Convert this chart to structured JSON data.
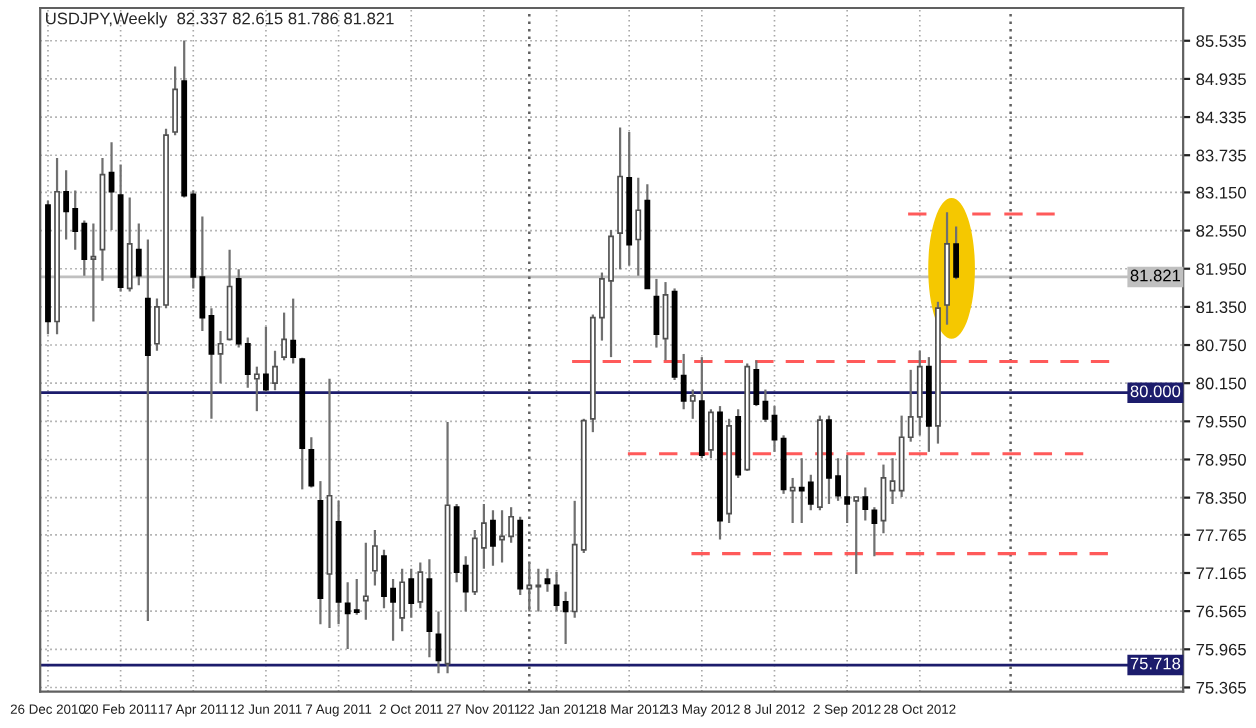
{
  "chart_data": {
    "type": "candlestick",
    "title": "USDJPY,Weekly  82.337 82.615 81.786 81.821",
    "x": [
      "2010-12-26",
      "2011-01-02",
      "2011-01-09",
      "2011-01-16",
      "2011-01-23",
      "2011-01-30",
      "2011-02-06",
      "2011-02-13",
      "2011-02-20",
      "2011-02-27",
      "2011-03-06",
      "2011-03-13",
      "2011-03-20",
      "2011-03-27",
      "2011-04-03",
      "2011-04-10",
      "2011-04-17",
      "2011-04-24",
      "2011-05-01",
      "2011-05-08",
      "2011-05-15",
      "2011-05-22",
      "2011-05-29",
      "2011-06-05",
      "2011-06-12",
      "2011-06-19",
      "2011-06-26",
      "2011-07-03",
      "2011-07-10",
      "2011-07-17",
      "2011-07-24",
      "2011-07-31",
      "2011-08-07",
      "2011-08-14",
      "2011-08-21",
      "2011-08-28",
      "2011-09-04",
      "2011-09-11",
      "2011-09-18",
      "2011-09-25",
      "2011-10-02",
      "2011-10-09",
      "2011-10-16",
      "2011-10-23",
      "2011-10-30",
      "2011-11-06",
      "2011-11-13",
      "2011-11-20",
      "2011-11-27",
      "2011-12-04",
      "2011-12-11",
      "2011-12-18",
      "2011-12-25",
      "2012-01-01",
      "2012-01-08",
      "2012-01-15",
      "2012-01-22",
      "2012-01-29",
      "2012-02-05",
      "2012-02-12",
      "2012-02-19",
      "2012-02-26",
      "2012-03-04",
      "2012-03-11",
      "2012-03-18",
      "2012-03-25",
      "2012-04-01",
      "2012-04-08",
      "2012-04-15",
      "2012-04-22",
      "2012-04-29",
      "2012-05-06",
      "2012-05-13",
      "2012-05-20",
      "2012-05-27",
      "2012-06-03",
      "2012-06-10",
      "2012-06-17",
      "2012-06-24",
      "2012-07-01",
      "2012-07-08",
      "2012-07-15",
      "2012-07-22",
      "2012-07-29",
      "2012-08-05",
      "2012-08-12",
      "2012-08-19",
      "2012-08-26",
      "2012-09-02",
      "2012-09-09",
      "2012-09-16",
      "2012-09-23",
      "2012-09-30",
      "2012-10-07",
      "2012-10-14",
      "2012-10-21",
      "2012-10-28",
      "2012-11-04",
      "2012-11-11",
      "2012-11-18",
      "2012-11-25"
    ],
    "ohlc": [
      [
        82.95,
        83.02,
        80.92,
        81.12
      ],
      [
        81.12,
        83.69,
        80.92,
        83.16
      ],
      [
        83.16,
        83.5,
        82.41,
        82.85
      ],
      [
        82.89,
        83.18,
        82.25,
        82.54
      ],
      [
        82.66,
        82.71,
        81.84,
        82.1
      ],
      [
        82.1,
        82.66,
        81.12,
        82.14
      ],
      [
        82.25,
        83.69,
        81.76,
        83.43
      ],
      [
        83.46,
        83.94,
        82.56,
        83.16
      ],
      [
        83.11,
        83.59,
        81.59,
        81.66
      ],
      [
        81.64,
        83.07,
        81.59,
        82.34
      ],
      [
        82.25,
        82.66,
        81.69,
        81.84
      ],
      [
        81.48,
        82.41,
        76.41,
        80.59
      ],
      [
        80.77,
        81.48,
        80.66,
        81.35
      ],
      [
        81.38,
        84.15,
        81.33,
        84.05
      ],
      [
        84.1,
        85.13,
        84.05,
        84.77
      ],
      [
        84.9,
        85.54,
        83.07,
        83.1
      ],
      [
        83.12,
        83.18,
        81.64,
        81.82
      ],
      [
        81.82,
        82.77,
        80.97,
        81.18
      ],
      [
        81.21,
        81.33,
        79.59,
        80.61
      ],
      [
        80.61,
        80.97,
        80.15,
        80.77
      ],
      [
        80.84,
        82.25,
        80.82,
        81.67
      ],
      [
        81.79,
        81.94,
        80.71,
        80.77
      ],
      [
        80.77,
        80.87,
        80.08,
        80.29
      ],
      [
        80.22,
        80.41,
        79.71,
        80.29
      ],
      [
        80.29,
        81.04,
        80.02,
        80.05
      ],
      [
        80.15,
        80.66,
        80.04,
        80.41
      ],
      [
        80.56,
        81.26,
        80.51,
        80.84
      ],
      [
        80.82,
        81.48,
        80.46,
        80.56
      ],
      [
        80.53,
        80.55,
        78.48,
        79.13
      ],
      [
        79.1,
        79.3,
        78.51,
        78.54
      ],
      [
        78.3,
        78.61,
        76.36,
        76.77
      ],
      [
        77.15,
        80.22,
        76.3,
        78.38
      ],
      [
        77.97,
        78.3,
        76.36,
        76.71
      ],
      [
        76.69,
        77.02,
        75.97,
        76.53
      ],
      [
        76.58,
        77.07,
        76.51,
        76.55
      ],
      [
        76.73,
        77.64,
        76.43,
        76.8
      ],
      [
        77.2,
        77.84,
        76.97,
        77.59
      ],
      [
        77.43,
        77.53,
        76.61,
        76.8
      ],
      [
        76.92,
        77.07,
        76.1,
        76.71
      ],
      [
        76.46,
        77.23,
        76.25,
        77.02
      ],
      [
        77.07,
        77.23,
        76.46,
        76.69
      ],
      [
        76.71,
        77.33,
        76.61,
        77.18
      ],
      [
        77.07,
        77.38,
        75.84,
        76.25
      ],
      [
        76.2,
        76.56,
        75.59,
        75.79
      ],
      [
        75.74,
        79.54,
        75.59,
        78.23
      ],
      [
        78.2,
        78.25,
        77.02,
        77.18
      ],
      [
        77.28,
        77.43,
        76.56,
        76.87
      ],
      [
        76.87,
        77.84,
        76.82,
        77.71
      ],
      [
        77.56,
        78.25,
        77.23,
        77.95
      ],
      [
        77.99,
        78.15,
        77.28,
        77.59
      ],
      [
        77.69,
        78.15,
        77.33,
        77.74
      ],
      [
        77.74,
        78.2,
        77.64,
        78.05
      ],
      [
        77.99,
        78.05,
        76.82,
        76.92
      ],
      [
        76.92,
        77.33,
        76.56,
        76.97
      ],
      [
        76.95,
        77.23,
        76.56,
        76.97
      ],
      [
        77.07,
        77.23,
        76.87,
        77.0
      ],
      [
        76.97,
        77.18,
        76.56,
        76.66
      ],
      [
        76.71,
        76.87,
        76.05,
        76.56
      ],
      [
        76.56,
        78.3,
        76.46,
        77.61
      ],
      [
        77.53,
        79.59,
        77.48,
        79.56
      ],
      [
        79.59,
        81.23,
        79.38,
        81.18
      ],
      [
        81.18,
        81.89,
        80.82,
        81.79
      ],
      [
        81.76,
        82.56,
        80.56,
        82.46
      ],
      [
        82.51,
        84.17,
        81.94,
        83.4
      ],
      [
        83.38,
        84.1,
        82.0,
        82.33
      ],
      [
        82.41,
        83.38,
        81.84,
        82.87
      ],
      [
        83.02,
        83.28,
        81.64,
        81.64
      ],
      [
        81.51,
        81.79,
        80.71,
        80.92
      ],
      [
        80.85,
        81.74,
        80.51,
        81.54
      ],
      [
        81.59,
        81.64,
        80.2,
        80.25
      ],
      [
        80.27,
        80.61,
        79.74,
        79.87
      ],
      [
        79.87,
        80.05,
        79.59,
        79.95
      ],
      [
        79.87,
        80.56,
        78.97,
        79.02
      ],
      [
        79.1,
        79.74,
        78.97,
        79.69
      ],
      [
        79.69,
        79.79,
        77.69,
        77.99
      ],
      [
        78.1,
        79.59,
        77.95,
        79.48
      ],
      [
        79.62,
        79.74,
        78.66,
        78.71
      ],
      [
        78.79,
        80.46,
        78.77,
        80.41
      ],
      [
        80.36,
        80.51,
        79.79,
        79.82
      ],
      [
        79.86,
        80.05,
        79.54,
        79.59
      ],
      [
        79.64,
        79.79,
        79.07,
        79.26
      ],
      [
        79.28,
        79.33,
        78.41,
        78.48
      ],
      [
        78.46,
        78.66,
        77.95,
        78.51
      ],
      [
        78.51,
        78.97,
        77.95,
        78.46
      ],
      [
        78.59,
        78.71,
        78.15,
        78.25
      ],
      [
        78.2,
        79.64,
        78.15,
        79.57
      ],
      [
        79.57,
        79.64,
        78.25,
        78.66
      ],
      [
        78.69,
        78.97,
        78.3,
        78.38
      ],
      [
        78.36,
        79.02,
        77.95,
        78.25
      ],
      [
        78.3,
        78.36,
        77.15,
        78.36
      ],
      [
        78.36,
        78.51,
        77.99,
        78.17
      ],
      [
        78.15,
        78.2,
        77.43,
        77.95
      ],
      [
        77.99,
        78.87,
        77.79,
        78.66
      ],
      [
        78.46,
        78.97,
        78.25,
        78.61
      ],
      [
        78.46,
        79.64,
        78.36,
        79.3
      ],
      [
        79.3,
        80.36,
        79.23,
        79.62
      ],
      [
        79.62,
        80.66,
        79.33,
        80.41
      ],
      [
        80.41,
        80.56,
        79.07,
        79.48
      ],
      [
        79.48,
        81.43,
        79.2,
        81.33
      ],
      [
        81.38,
        82.84,
        81.07,
        82.34
      ],
      [
        82.337,
        82.615,
        81.786,
        81.821
      ]
    ],
    "series": [
      {
        "type": "line",
        "color": "#ff5a5a",
        "line_style": "dashed",
        "x": [
          "2012-02-03",
          "2013-03-23"
        ],
        "values": [
          80.49,
          80.49
        ]
      },
      {
        "type": "line",
        "color": "#ff5a5a",
        "line_style": "dashed",
        "x": [
          "2012-03-17",
          "2013-03-03"
        ],
        "values": [
          79.04,
          79.04
        ]
      },
      {
        "type": "line",
        "color": "#ff5a5a",
        "line_style": "dashed",
        "x": [
          "2012-05-05",
          "2013-03-22"
        ],
        "values": [
          77.47,
          77.47
        ]
      },
      {
        "type": "line",
        "color": "#ff5a5a",
        "line_style": "dashed",
        "x": [
          "2012-10-19",
          "2013-02-09"
        ],
        "values": [
          82.81,
          82.81
        ]
      }
    ],
    "ref_lines": [
      {
        "axis": "y",
        "value": 81.821,
        "label": "81.821",
        "color": "#c0c0c0",
        "line_style": "solid"
      },
      {
        "axis": "y",
        "value": 80.0,
        "label": "80.000",
        "color": "#1c1c6c",
        "line_style": "solid"
      },
      {
        "axis": "y",
        "value": 75.718,
        "label": "75.718",
        "color": "#1c1c6c",
        "line_style": "solid"
      },
      {
        "axis": "x",
        "value": "2012-01-01",
        "color": "#606060",
        "line_style": "dotted"
      },
      {
        "axis": "x",
        "value": "2013-01-06",
        "color": "#606060",
        "line_style": "dotted"
      }
    ],
    "xlim": [
      "2010-12-20",
      "2013-05-19"
    ],
    "xticks": [
      {
        "value": "2010-12-26",
        "label": "26 Dec 2010"
      },
      {
        "value": "2011-02-20",
        "label": "20 Feb 2011"
      },
      {
        "value": "2011-04-17",
        "label": "17 Apr 2011"
      },
      {
        "value": "2011-06-12",
        "label": "12 Jun 2011"
      },
      {
        "value": "2011-08-07",
        "label": "7 Aug 2011"
      },
      {
        "value": "2011-10-02",
        "label": "2 Oct 2011"
      },
      {
        "value": "2011-11-27",
        "label": "27 Nov 2011"
      },
      {
        "value": "2012-01-22",
        "label": "22 Jan 2012"
      },
      {
        "value": "2012-03-18",
        "label": "18 Mar 2012"
      },
      {
        "value": "2012-05-13",
        "label": "13 May 2012"
      },
      {
        "value": "2012-07-08",
        "label": "8 Jul 2012"
      },
      {
        "value": "2012-09-02",
        "label": "2 Sep 2012"
      },
      {
        "value": "2012-10-28",
        "label": "28 Oct 2012"
      }
    ],
    "ylim": [
      75.3,
      86.05
    ],
    "yticks": [
      {
        "value": 85.535,
        "label": "85.535"
      },
      {
        "value": 84.935,
        "label": "84.935"
      },
      {
        "value": 84.335,
        "label": "84.335"
      },
      {
        "value": 83.735,
        "label": "83.735"
      },
      {
        "value": 83.15,
        "label": "83.150"
      },
      {
        "value": 82.55,
        "label": "82.550"
      },
      {
        "value": 81.95,
        "label": "81.950"
      },
      {
        "value": 81.35,
        "label": "81.350"
      },
      {
        "value": 80.75,
        "label": "80.750"
      },
      {
        "value": 80.15,
        "label": "80.150"
      },
      {
        "value": 79.55,
        "label": "79.550"
      },
      {
        "value": 78.95,
        "label": "78.950"
      },
      {
        "value": 78.35,
        "label": "78.350"
      },
      {
        "value": 77.765,
        "label": "77.765"
      },
      {
        "value": 77.165,
        "label": "77.165"
      },
      {
        "value": 76.565,
        "label": "76.565"
      },
      {
        "value": 75.965,
        "label": "75.965"
      },
      {
        "value": 75.365,
        "label": "75.365"
      }
    ],
    "grid": true
  }
}
